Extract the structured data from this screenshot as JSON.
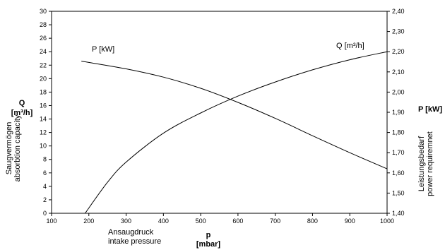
{
  "chart_data": {
    "type": "line",
    "x_axis": {
      "min": 100,
      "max": 1000,
      "ticks": [
        "100",
        "200",
        "300",
        "400",
        "500",
        "600",
        "700",
        "800",
        "900",
        "1000"
      ],
      "symbol": "p",
      "unit": "[mbar]",
      "label_de": "Ansaugdruck",
      "label_en": "intake pressure"
    },
    "y_left": {
      "min": 0,
      "max": 30,
      "ticks": [
        "0",
        "2",
        "4",
        "6",
        "8",
        "10",
        "12",
        "14",
        "16",
        "18",
        "20",
        "22",
        "24",
        "26",
        "28",
        "30"
      ],
      "symbol": "Q",
      "unit": "[m³/h]",
      "label_de": "Saugvermögen",
      "label_en": "absorbtion capacity"
    },
    "y_right": {
      "min": 1.4,
      "max": 2.4,
      "ticks": [
        "1,40",
        "1,50",
        "1,60",
        "1,70",
        "1,80",
        "1,90",
        "2,00",
        "2,10",
        "2,20",
        "2,30",
        "2,40"
      ],
      "symbol": "P [kW]",
      "label_de": "Leistungsbedarf",
      "label_en": "power requiremnet"
    },
    "series": [
      {
        "name": "Q [m³/h]",
        "axis": "left",
        "x": [
          190,
          250,
          300,
          400,
          500,
          600,
          700,
          800,
          900,
          1000
        ],
        "y": [
          0,
          4.6,
          7.6,
          11.9,
          14.9,
          17.4,
          19.5,
          21.3,
          22.8,
          24.0
        ]
      },
      {
        "name": "P [kW]",
        "axis": "right",
        "x": [
          180,
          300,
          400,
          500,
          600,
          700,
          800,
          900,
          1000
        ],
        "y": [
          2.153,
          2.115,
          2.074,
          2.019,
          1.949,
          1.87,
          1.784,
          1.7,
          1.62
        ]
      }
    ]
  }
}
